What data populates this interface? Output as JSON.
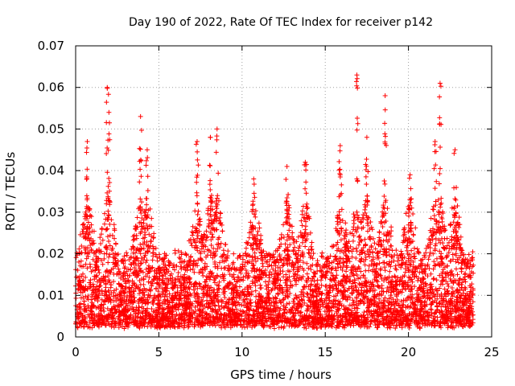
{
  "chart_data": {
    "type": "scatter",
    "title": "Day 190 of 2022, Rate Of TEC Index for receiver p142",
    "xlabel": "GPS time / hours",
    "ylabel": "ROTI / TECUs",
    "xlim": [
      0,
      25
    ],
    "ylim": [
      0,
      0.07
    ],
    "xticks": [
      "0",
      "5",
      "10",
      "15",
      "20",
      "25"
    ],
    "yticks": [
      "0",
      "0.01",
      "0.02",
      "0.03",
      "0.04",
      "0.05",
      "0.06",
      "0.07"
    ],
    "grid": true,
    "marker": "plus",
    "color": "#ff0000",
    "spikes": [
      {
        "x": 0.7,
        "y": 0.047
      },
      {
        "x": 1.9,
        "y": 0.06
      },
      {
        "x": 2.0,
        "y": 0.054
      },
      {
        "x": 3.9,
        "y": 0.053
      },
      {
        "x": 4.3,
        "y": 0.045
      },
      {
        "x": 7.3,
        "y": 0.047
      },
      {
        "x": 8.1,
        "y": 0.048
      },
      {
        "x": 8.5,
        "y": 0.05
      },
      {
        "x": 10.7,
        "y": 0.038
      },
      {
        "x": 12.7,
        "y": 0.041
      },
      {
        "x": 13.8,
        "y": 0.042
      },
      {
        "x": 15.9,
        "y": 0.046
      },
      {
        "x": 16.9,
        "y": 0.063
      },
      {
        "x": 17.5,
        "y": 0.048
      },
      {
        "x": 18.6,
        "y": 0.058
      },
      {
        "x": 20.1,
        "y": 0.039
      },
      {
        "x": 21.6,
        "y": 0.047
      },
      {
        "x": 21.9,
        "y": 0.061
      },
      {
        "x": 22.8,
        "y": 0.045
      }
    ],
    "series_profile": {
      "x_start": 0.0,
      "x_end": 23.9,
      "typical_range": [
        0.003,
        0.02
      ],
      "active_periods_range": [
        0.003,
        0.035
      ]
    }
  }
}
